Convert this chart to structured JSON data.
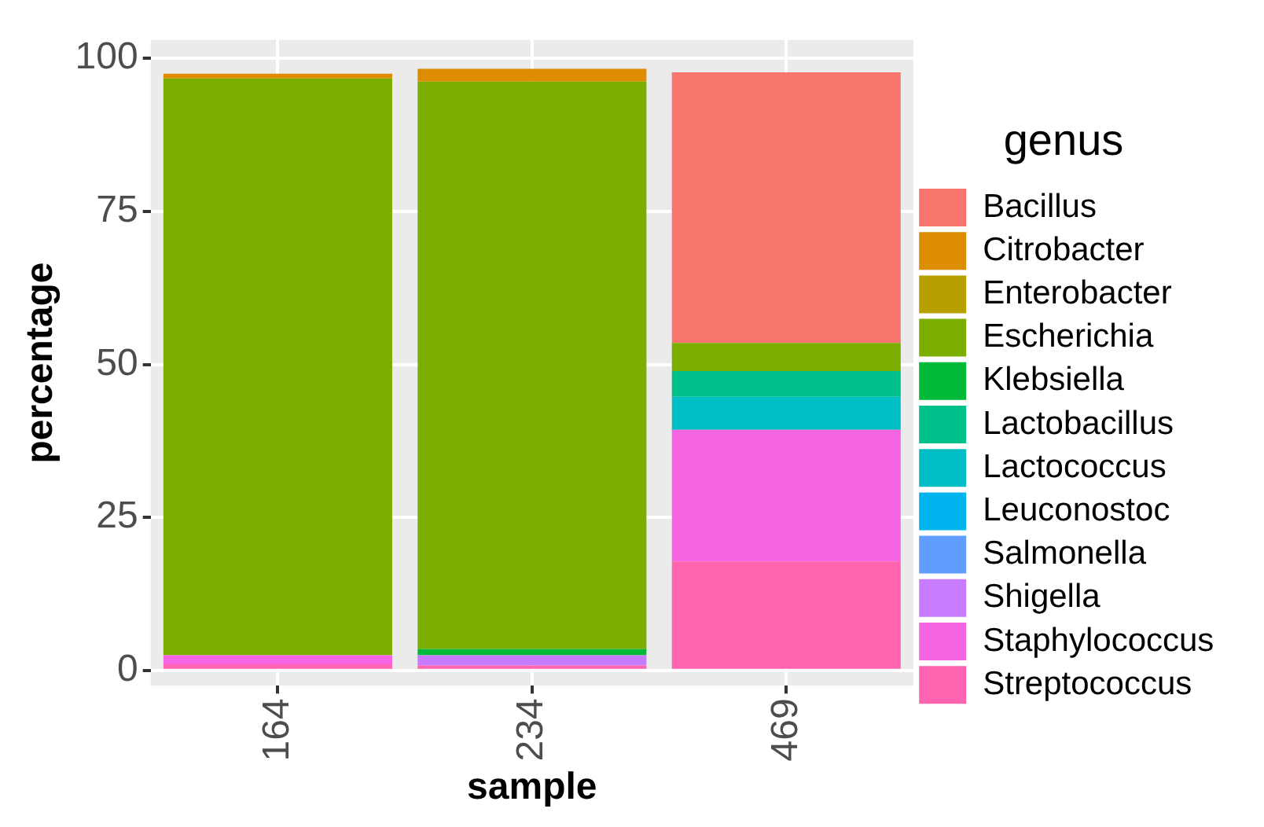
{
  "chart_data": {
    "type": "bar",
    "stacked": true,
    "xlabel": "sample",
    "ylabel": "percentage",
    "legend_title": "genus",
    "legend": "right",
    "grid": true,
    "categories": [
      "164",
      "234",
      "469"
    ],
    "ylim": [
      -2.5,
      103
    ],
    "yticks": [
      0,
      25,
      50,
      75,
      100
    ],
    "series": [
      {
        "name": "Streptococcus",
        "color": "#ff64b0",
        "values": [
          1.0,
          0.8,
          17.8
        ]
      },
      {
        "name": "Staphylococcus",
        "color": "#f564e3",
        "values": [
          1.5,
          0,
          21.5
        ]
      },
      {
        "name": "Shigella",
        "color": "#c77cff",
        "values": [
          0,
          1.7,
          0
        ]
      },
      {
        "name": "Salmonella",
        "color": "#619cff",
        "values": [
          0,
          0,
          0
        ]
      },
      {
        "name": "Leuconostoc",
        "color": "#00b4f0",
        "values": [
          0,
          0,
          0
        ]
      },
      {
        "name": "Lactococcus",
        "color": "#00bfc4",
        "values": [
          0,
          0,
          5.4
        ]
      },
      {
        "name": "Lactobacillus",
        "color": "#00c08b",
        "values": [
          0,
          0,
          4.2
        ]
      },
      {
        "name": "Klebsiella",
        "color": "#00ba38",
        "values": [
          0,
          1.0,
          0
        ]
      },
      {
        "name": "Escherichia",
        "color": "#7cae00",
        "values": [
          94.2,
          92.7,
          4.6
        ]
      },
      {
        "name": "Enterobacter",
        "color": "#b79f00",
        "values": [
          0,
          0,
          0
        ]
      },
      {
        "name": "Citrobacter",
        "color": "#de8c00",
        "values": [
          0.8,
          2.1,
          0
        ]
      },
      {
        "name": "Bacillus",
        "color": "#f8766d",
        "values": [
          0,
          0,
          44.2
        ]
      }
    ]
  }
}
